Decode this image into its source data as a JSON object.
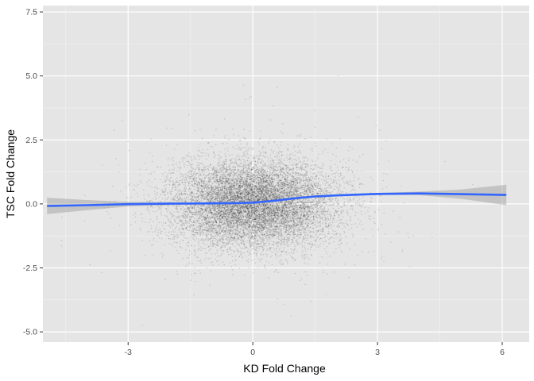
{
  "chart_data": {
    "type": "scatter",
    "title": "",
    "xlabel": "KD Fold Change",
    "ylabel": "TSC Fold Change",
    "xlim": [
      -5.05,
      6.65
    ],
    "ylim": [
      -5.4,
      7.75
    ],
    "x_ticks": [
      -3,
      0,
      3,
      6
    ],
    "x_tick_labels": [
      "-3",
      "0",
      "3",
      "6"
    ],
    "y_ticks": [
      -5.0,
      -2.5,
      0.0,
      2.5,
      5.0,
      7.5
    ],
    "y_tick_labels": [
      "-5.0",
      "-2.5",
      "0.0",
      "2.5",
      "5.0",
      "7.5"
    ],
    "grid": true,
    "legend": "none",
    "background_color": "#e5e5e5",
    "point_color": "#000000",
    "point_opacity": 0.15,
    "point_count": 12000,
    "point_distribution": {
      "x_mean": 0.0,
      "x_sd": 1.0,
      "y_mean": 0.0,
      "y_sd": 0.85,
      "x_range": [
        -4.6,
        6.1
      ],
      "y_range": [
        -5.1,
        7.2
      ]
    },
    "smooth": {
      "method": "loess",
      "color": "#3366ff",
      "ribbon_color": "#999999",
      "x": [
        -4.95,
        -4.0,
        -3.0,
        -2.0,
        -1.0,
        -0.5,
        0.0,
        0.5,
        1.0,
        1.5,
        2.0,
        3.0,
        4.0,
        5.0,
        6.1
      ],
      "y": [
        -0.08,
        -0.05,
        -0.01,
        0.01,
        0.02,
        0.03,
        0.05,
        0.12,
        0.22,
        0.29,
        0.33,
        0.39,
        0.41,
        0.38,
        0.35
      ],
      "ci_lower": [
        -0.4,
        -0.25,
        -0.1,
        -0.04,
        -0.01,
        0.01,
        0.03,
        0.1,
        0.19,
        0.26,
        0.3,
        0.35,
        0.34,
        0.2,
        -0.05
      ],
      "ci_upper": [
        0.24,
        0.15,
        0.08,
        0.06,
        0.05,
        0.05,
        0.07,
        0.14,
        0.25,
        0.32,
        0.36,
        0.43,
        0.48,
        0.56,
        0.75
      ]
    }
  }
}
